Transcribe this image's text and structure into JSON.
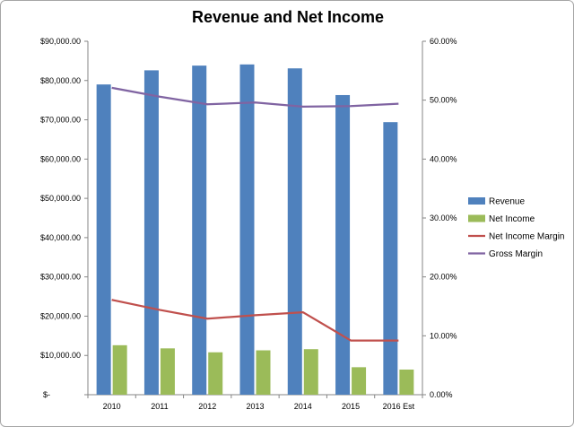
{
  "chart_data": {
    "type": "bar",
    "title": "Revenue and Net Income",
    "categories": [
      "2010",
      "2011",
      "2012",
      "2013",
      "2014",
      "2015",
      "2016 Est"
    ],
    "bar_series": [
      {
        "name": "Revenue",
        "color": "#4f81bd",
        "values": [
          79000,
          82600,
          83800,
          84100,
          83100,
          76300,
          69400
        ]
      },
      {
        "name": "Net Income",
        "color": "#9bbb59",
        "values": [
          12600,
          11800,
          10800,
          11300,
          11600,
          7000,
          6400
        ]
      }
    ],
    "line_series": [
      {
        "name": "Net Income Margin",
        "color": "#c0504d",
        "axis": "right",
        "values": [
          16.1,
          14.4,
          12.9,
          13.5,
          14.0,
          9.2,
          9.2
        ]
      },
      {
        "name": "Gross Margin",
        "color": "#8064a2",
        "axis": "right",
        "values": [
          52.1,
          50.6,
          49.3,
          49.6,
          48.9,
          49.0,
          49.4
        ]
      }
    ],
    "y_left": {
      "min": 0,
      "max": 90000,
      "step": 10000,
      "tick_labels": [
        "$-",
        "$10,000.00",
        "$20,000.00",
        "$30,000.00",
        "$40,000.00",
        "$50,000.00",
        "$60,000.00",
        "$70,000.00",
        "$80,000.00",
        "$90,000.00"
      ]
    },
    "y_right": {
      "min": 0,
      "max": 60,
      "step": 10,
      "tick_labels": [
        "0.00%",
        "10.00%",
        "20.00%",
        "30.00%",
        "40.00%",
        "50.00%",
        "60.00%"
      ]
    },
    "grid": false,
    "legend_position": "right"
  }
}
